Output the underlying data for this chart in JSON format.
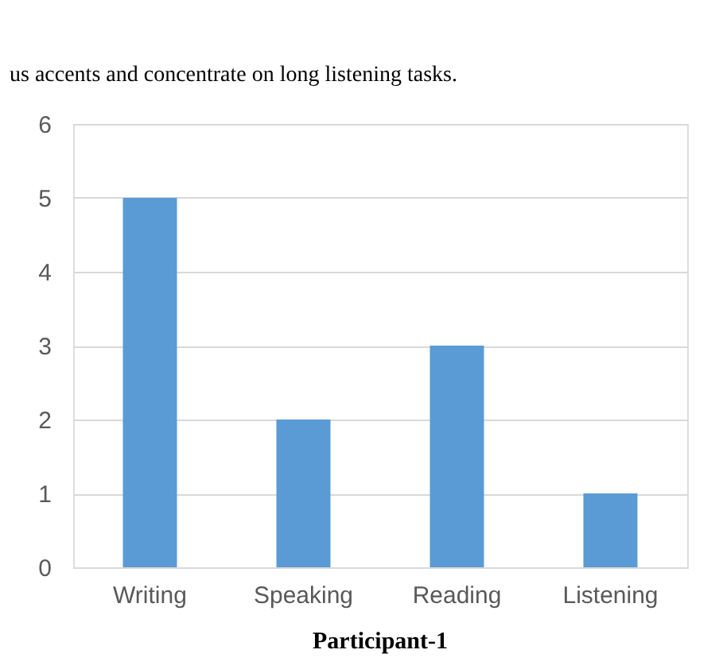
{
  "chart_data": {
    "type": "bar",
    "title": "Participant-1",
    "annotations": [
      "us accents and concentrate on long listening tasks."
    ],
    "categories": [
      "Writing",
      "Speaking",
      "Reading",
      "Listening"
    ],
    "values": [
      5,
      2,
      3,
      1
    ],
    "color": "#5b9bd5",
    "ylim": [
      0,
      6
    ],
    "yticks": [
      0,
      1,
      2,
      3,
      4,
      5,
      6
    ],
    "grid": "y"
  }
}
